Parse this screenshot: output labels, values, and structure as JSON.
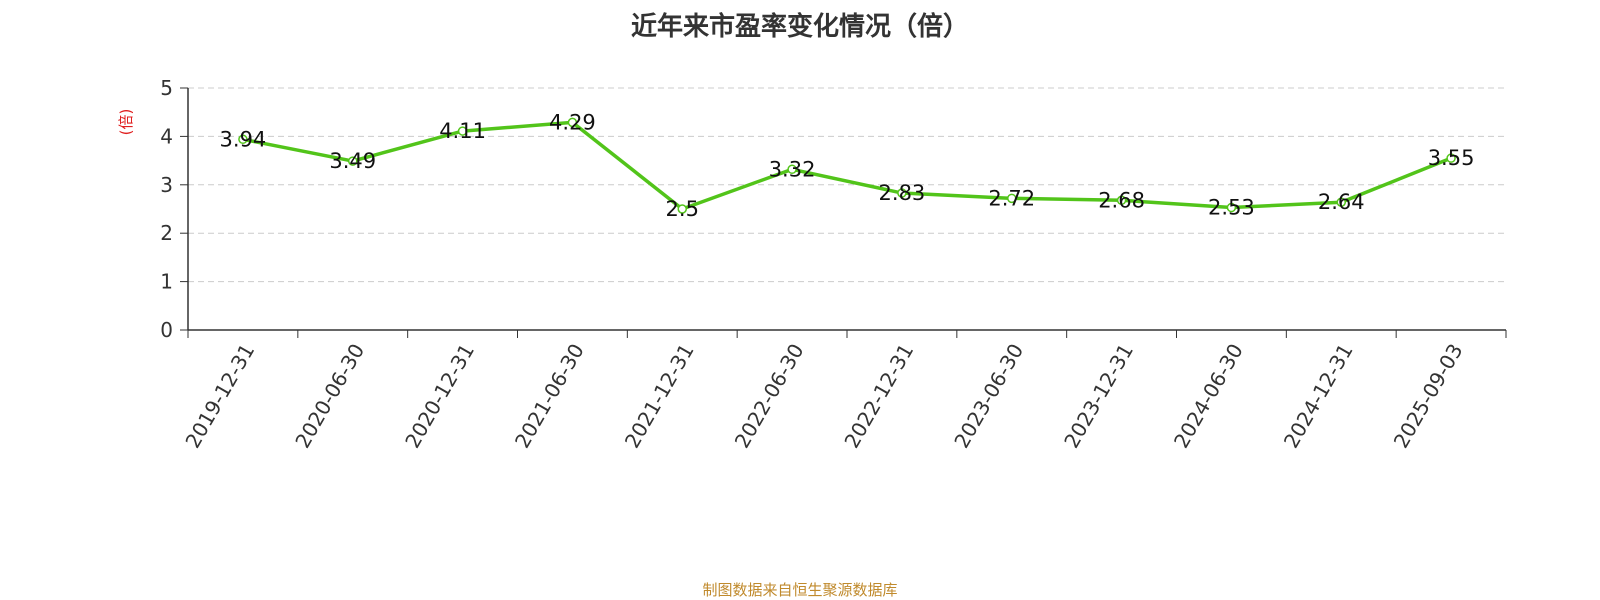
{
  "chart_data": {
    "type": "line",
    "title": "近年来市盈率变化情况（倍）",
    "ylabel": "(倍)",
    "xlabel": "",
    "ylim": [
      0,
      5
    ],
    "yticks": [
      0,
      1,
      2,
      3,
      4,
      5
    ],
    "grid": true,
    "categories": [
      "2019-12-31",
      "2020-06-30",
      "2020-12-31",
      "2021-06-30",
      "2021-12-31",
      "2022-06-30",
      "2022-12-31",
      "2023-06-30",
      "2023-12-31",
      "2024-06-30",
      "2024-12-31",
      "2025-09-03"
    ],
    "series": [
      {
        "values": [
          3.94,
          3.49,
          4.11,
          4.29,
          2.5,
          3.32,
          2.83,
          2.72,
          2.68,
          2.53,
          2.64,
          3.55
        ],
        "data_labels": [
          "3.94",
          "3.49",
          "4.11",
          "4.29",
          "2.5",
          "3.32",
          "2.83",
          "2.72",
          "2.68",
          "2.53",
          "2.64",
          "3.55"
        ]
      }
    ],
    "colors": {
      "line": "#52c41a",
      "ylabel": "#e02020",
      "grid": "#cccccc",
      "axis": "#333333"
    }
  },
  "footer": {
    "source_text": "制图数据来自恒生聚源数据库"
  }
}
